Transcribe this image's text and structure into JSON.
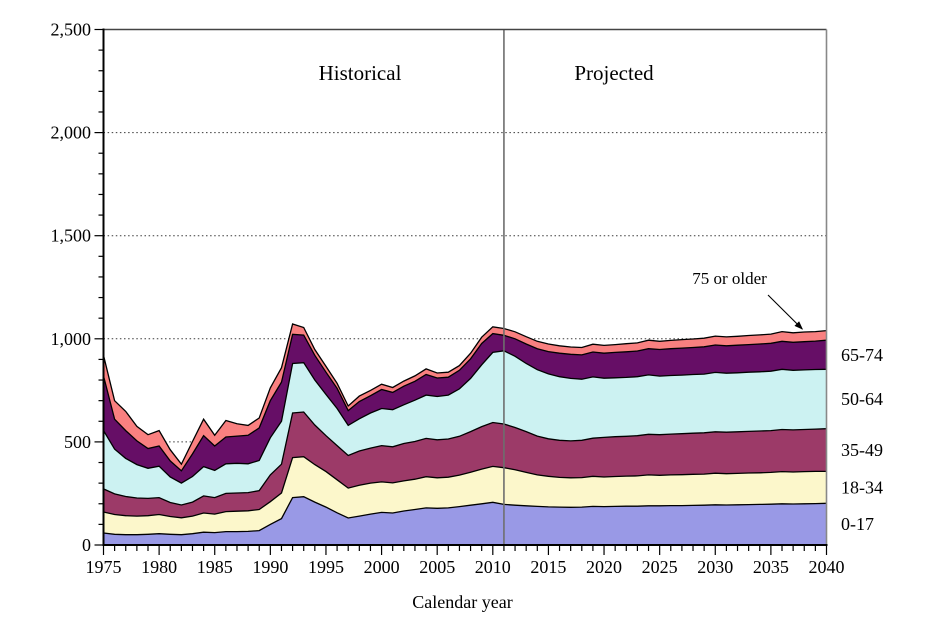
{
  "chart_data": {
    "type": "area",
    "stacked": true,
    "xlabel": "Calendar year",
    "ylabel": "",
    "ylim": [
      0,
      2500
    ],
    "ytick_step": 500,
    "ytick_labels": [
      "0",
      "500",
      "1,000",
      "1,500",
      "2,000",
      "2,500"
    ],
    "xtick_labels": [
      "1975",
      "1980",
      "1985",
      "1990",
      "1995",
      "2000",
      "2005",
      "2010",
      "2015",
      "2020",
      "2025",
      "2030",
      "2035",
      "2040"
    ],
    "grid": "horizontal-dotted",
    "legend_position": "right-of-plot-inline",
    "region_labels": {
      "historical": "Historical",
      "projected": "Projected"
    },
    "divider_year": 2011,
    "annotation": {
      "text": "75 or older",
      "arrow_to_year": 2038
    },
    "x": [
      1975,
      1976,
      1977,
      1978,
      1979,
      1980,
      1981,
      1982,
      1983,
      1984,
      1985,
      1986,
      1987,
      1988,
      1989,
      1990,
      1991,
      1992,
      1993,
      1994,
      1995,
      1996,
      1997,
      1998,
      1999,
      2000,
      2001,
      2002,
      2003,
      2004,
      2005,
      2006,
      2007,
      2008,
      2009,
      2010,
      2011,
      2012,
      2013,
      2014,
      2015,
      2016,
      2017,
      2018,
      2019,
      2020,
      2021,
      2022,
      2023,
      2024,
      2025,
      2026,
      2027,
      2028,
      2029,
      2030,
      2031,
      2032,
      2033,
      2034,
      2035,
      2036,
      2037,
      2038,
      2039,
      2040
    ],
    "series": [
      {
        "name": "0-17",
        "color": "#9999E6",
        "right_label": true,
        "values": [
          58,
          52,
          50,
          50,
          52,
          55,
          52,
          50,
          55,
          62,
          60,
          65,
          65,
          66,
          70,
          100,
          128,
          230,
          234,
          208,
          184,
          156,
          131,
          140,
          150,
          158,
          155,
          165,
          172,
          180,
          178,
          180,
          186,
          193,
          200,
          207,
          197,
          193,
          190,
          187,
          185,
          184,
          183,
          184,
          187,
          186,
          187,
          188,
          188,
          190,
          190,
          191,
          191,
          192,
          193,
          195,
          194,
          195,
          196,
          197,
          198,
          200,
          199,
          200,
          201,
          202
        ]
      },
      {
        "name": "18-34",
        "color": "#FCF7CB",
        "right_label": true,
        "values": [
          102,
          96,
          92,
          90,
          90,
          93,
          86,
          82,
          85,
          93,
          90,
          97,
          99,
          100,
          102,
          110,
          124,
          194,
          194,
          182,
          172,
          160,
          145,
          150,
          150,
          148,
          146,
          146,
          147,
          151,
          148,
          149,
          153,
          160,
          168,
          174,
          178,
          172,
          162,
          153,
          148,
          144,
          143,
          143,
          146,
          144,
          145,
          146,
          147,
          150,
          148,
          149,
          150,
          151,
          151,
          153,
          152,
          152,
          153,
          153,
          154,
          156,
          155,
          156,
          156,
          155
        ]
      },
      {
        "name": "35-49",
        "color": "#9C3A68",
        "right_label": true,
        "values": [
          112,
          100,
          93,
          88,
          84,
          82,
          68,
          62,
          68,
          83,
          80,
          88,
          88,
          88,
          92,
          130,
          140,
          216,
          217,
          192,
          174,
          166,
          158,
          166,
          170,
          176,
          175,
          181,
          183,
          186,
          184,
          185,
          188,
          197,
          206,
          213,
          212,
          205,
          198,
          188,
          182,
          180,
          179,
          181,
          185,
          192,
          193,
          193,
          195,
          197,
          197,
          198,
          199,
          199,
          200,
          201,
          201,
          202,
          202,
          203,
          203,
          204,
          204,
          204,
          205,
          207
        ]
      },
      {
        "name": "50-64",
        "color": "#CCF2F2",
        "right_label": true,
        "values": [
          283,
          217,
          185,
          162,
          146,
          152,
          124,
          106,
          124,
          142,
          132,
          144,
          144,
          140,
          146,
          180,
          208,
          240,
          239,
          218,
          200,
          180,
          146,
          156,
          170,
          180,
          180,
          188,
          200,
          210,
          210,
          213,
          230,
          258,
          300,
          340,
          355,
          345,
          330,
          322,
          315,
          308,
          303,
          296,
          297,
          287,
          286,
          286,
          286,
          288,
          284,
          284,
          284,
          285,
          285,
          288,
          286,
          286,
          287,
          287,
          288,
          292,
          289,
          289,
          289,
          288
        ]
      },
      {
        "name": "65-74",
        "color": "#660E66",
        "right_label": true,
        "values": [
          265,
          145,
          135,
          115,
          96,
          98,
          78,
          60,
          110,
          150,
          118,
          130,
          132,
          138,
          158,
          180,
          190,
          142,
          134,
          120,
          108,
          98,
          72,
          84,
          84,
          92,
          84,
          90,
          92,
          100,
          90,
          87,
          90,
          95,
          103,
          91,
          75,
          85,
          95,
          102,
          108,
          114,
          117,
          118,
          121,
          121,
          123,
          124,
          125,
          127,
          129,
          130,
          131,
          131,
          132,
          133,
          133,
          134,
          134,
          135,
          135,
          136,
          136,
          137,
          138,
          141
        ]
      },
      {
        "name": "75 or older",
        "color": "#F98080",
        "right_label": false,
        "values": [
          100,
          90,
          93,
          70,
          67,
          75,
          54,
          32,
          60,
          80,
          52,
          80,
          60,
          48,
          48,
          62,
          70,
          50,
          37,
          28,
          28,
          24,
          22,
          26,
          26,
          26,
          24,
          25,
          26,
          27,
          24,
          24,
          23,
          27,
          31,
          33,
          33,
          34,
          35,
          36,
          37,
          36,
          35,
          36,
          38,
          38,
          38,
          39,
          39,
          41,
          40,
          40,
          41,
          41,
          42,
          43,
          43,
          43,
          44,
          44,
          45,
          47,
          46,
          47,
          46,
          47
        ]
      }
    ]
  }
}
